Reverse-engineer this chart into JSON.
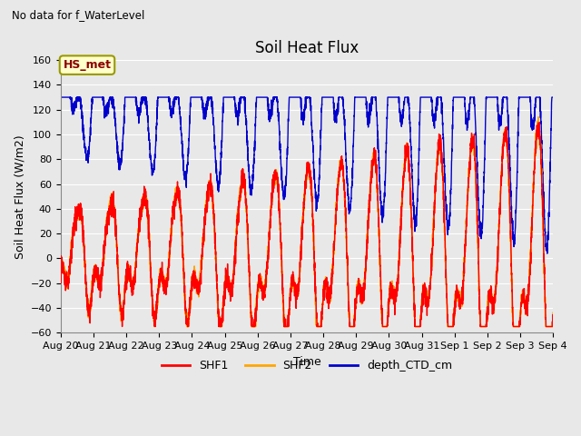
{
  "title": "Soil Heat Flux",
  "subtitle": "No data for f_WaterLevel",
  "ylabel": "Soil Heat Flux (W/m2)",
  "xlabel": "Time",
  "ylim": [
    -60,
    160
  ],
  "annotation": "HS_met",
  "legend": [
    {
      "label": "SHF1",
      "color": "#ff0000"
    },
    {
      "label": "SHF2",
      "color": "#ffa500"
    },
    {
      "label": "depth_CTD_cm",
      "color": "#0000cc"
    }
  ],
  "x_tick_labels": [
    "Aug 20",
    "Aug 21",
    "Aug 22",
    "Aug 23",
    "Aug 24",
    "Aug 25",
    "Aug 26",
    "Aug 27",
    "Aug 28",
    "Aug 29",
    "Aug 30",
    "Aug 31",
    "Sep 1",
    "Sep 2",
    "Sep 3",
    "Sep 4"
  ],
  "background_color": "#e8e8e8",
  "plot_background": "#e8e8e8",
  "grid_color": "#ffffff",
  "shf1_color": "#ff0000",
  "shf2_color": "#ffa500",
  "depth_color": "#0000cc",
  "title_fontsize": 12,
  "axis_fontsize": 9,
  "tick_fontsize": 8
}
